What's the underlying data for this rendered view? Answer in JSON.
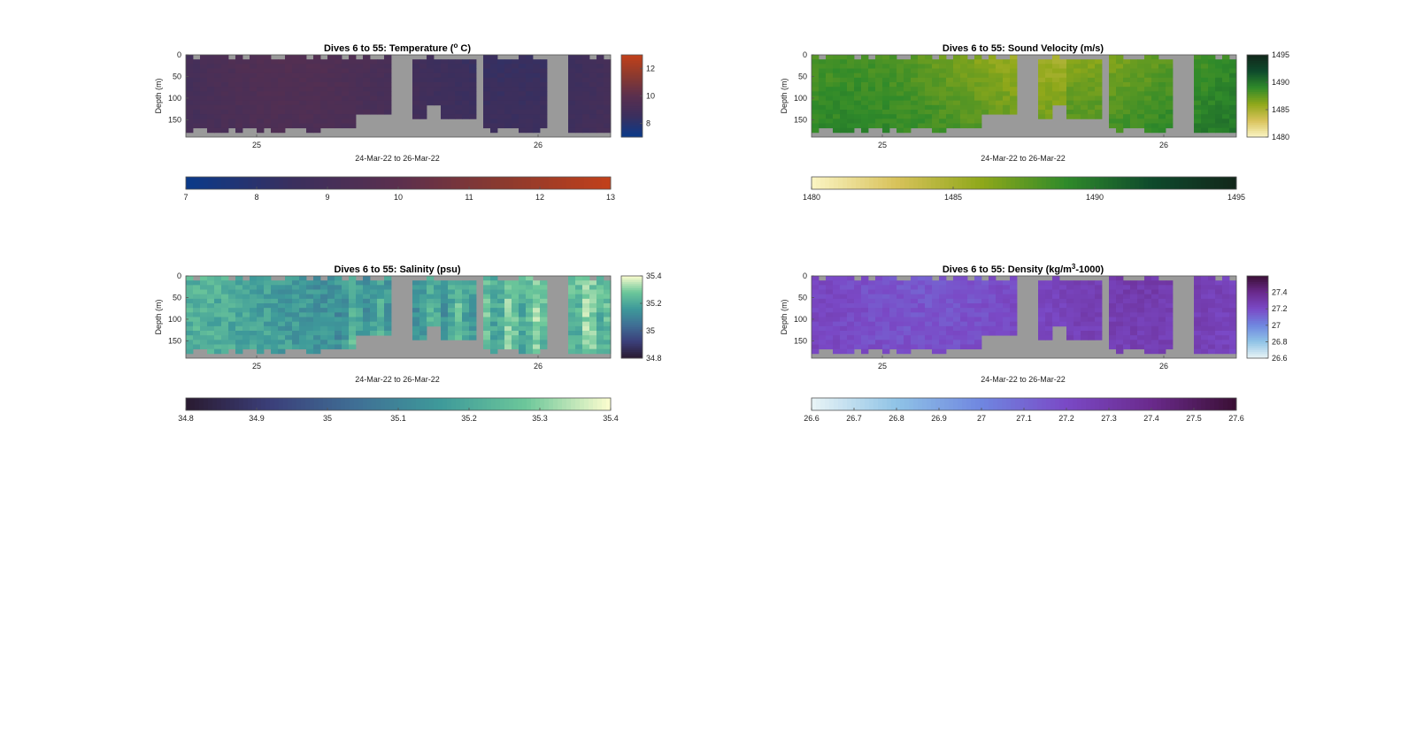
{
  "colors": {
    "no_data": "#9a9a9a",
    "frame": "#555555"
  },
  "chart_data": [
    {
      "type": "heatmap",
      "id": "temperature",
      "title": "Dives 6 to 55: Temperature (",
      "title_sup": "o",
      "title_tail": " C)",
      "xlabel": "24-Mar-22 to 26-Mar-22",
      "ylabel": "Depth (m)",
      "x_ticks": [
        "25",
        "26"
      ],
      "y_ticks": [
        "0",
        "50",
        "100",
        "150"
      ],
      "ylim": [
        0,
        190
      ],
      "side_colorbar_ticks": [
        "12",
        "10",
        "8"
      ],
      "bottom_colorbar_ticks": [
        "7",
        "8",
        "9",
        "10",
        "11",
        "12",
        "13"
      ],
      "clim": [
        7,
        13
      ],
      "colormap": [
        "#0a3a8a",
        "#3a2f5e",
        "#5b2f4e",
        "#8c3a2e",
        "#c2401a"
      ],
      "field": {
        "base": 9.0,
        "amp": 0.6,
        "var": 0.15
      }
    },
    {
      "type": "heatmap",
      "id": "sound_velocity",
      "title": "Dives 6 to 55: Sound Velocity (m/s)",
      "title_sup": "",
      "title_tail": "",
      "xlabel": "24-Mar-22 to 26-Mar-22",
      "ylabel": "Depth (m)",
      "x_ticks": [
        "25",
        "26"
      ],
      "y_ticks": [
        "0",
        "50",
        "100",
        "150"
      ],
      "ylim": [
        0,
        190
      ],
      "side_colorbar_ticks": [
        "1495",
        "1490",
        "1485",
        "1480"
      ],
      "bottom_colorbar_ticks": [
        "1480",
        "1485",
        "1490",
        "1495"
      ],
      "clim": [
        1480,
        1495
      ],
      "colormap": [
        "#fbf5c4",
        "#d8c25a",
        "#8fa81a",
        "#2f8a2a",
        "#0e4a2c",
        "#12261a"
      ],
      "field": {
        "base": 1487.5,
        "amp": 1.6,
        "var": 0.5
      }
    },
    {
      "type": "heatmap",
      "id": "salinity",
      "title": "Dives 6 to 55: Salinity (psu)",
      "title_sup": "",
      "title_tail": "",
      "xlabel": "24-Mar-22 to 26-Mar-22",
      "ylabel": "Depth (m)",
      "x_ticks": [
        "25",
        "26"
      ],
      "y_ticks": [
        "0",
        "50",
        "100",
        "150"
      ],
      "ylim": [
        0,
        190
      ],
      "side_colorbar_ticks": [
        "35.4",
        "35.2",
        "35",
        "34.8"
      ],
      "bottom_colorbar_ticks": [
        "34.8",
        "34.9",
        "35",
        "35.1",
        "35.2",
        "35.3",
        "35.4"
      ],
      "clim": [
        34.8,
        35.4
      ],
      "colormap": [
        "#2a1a30",
        "#3b3f7a",
        "#3f6f95",
        "#3e9a9a",
        "#6cc79a",
        "#fdfdcf"
      ],
      "field": {
        "base": 35.18,
        "amp": 0.06,
        "var": 0.05
      }
    },
    {
      "type": "heatmap",
      "id": "density",
      "title": "Dives 6 to 55: Density (kg/m",
      "title_sup": "3",
      "title_tail": "-1000)",
      "xlabel": "24-Mar-22 to 26-Mar-22",
      "ylabel": "Depth (m)",
      "x_ticks": [
        "25",
        "26"
      ],
      "y_ticks": [
        "0",
        "50",
        "100",
        "150"
      ],
      "ylim": [
        0,
        190
      ],
      "side_colorbar_ticks": [
        "27.4",
        "27.2",
        "27",
        "26.8",
        "26.6"
      ],
      "bottom_colorbar_ticks": [
        "26.6",
        "26.7",
        "26.8",
        "26.9",
        "27",
        "27.1",
        "27.2",
        "27.3",
        "27.4",
        "27.5",
        "27.6"
      ],
      "clim": [
        26.6,
        27.6
      ],
      "colormap": [
        "#e9f4f6",
        "#8fc3e6",
        "#6f86e0",
        "#7a49c6",
        "#6a2a8c",
        "#3a0f34"
      ],
      "field": {
        "base": 27.22,
        "amp": 0.07,
        "var": 0.04
      }
    }
  ]
}
